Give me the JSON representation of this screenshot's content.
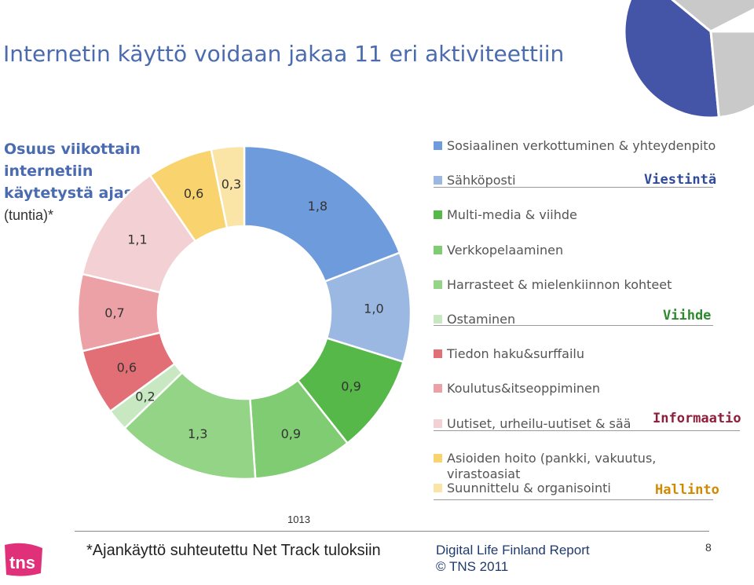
{
  "page": {
    "title": "Internetin käyttö voidaan jakaa 11 eri aktiviteettiin",
    "chart_title": "Osuus viikottain internetiin käytetystä ajasta",
    "chart_unit": "(tuntia)*",
    "code": "1013",
    "footnote": "*Ajankäyttö suhteutettu Net Track tuloksiin",
    "report_line1": "Digital Life  Finland  Report",
    "report_line2": "© TNS 2011",
    "page_number": "8",
    "logo_text": "tns"
  },
  "chart_data": {
    "type": "pie",
    "donut": true,
    "title": "Osuus viikottain internetiin käytetystä ajasta (tuntia)*",
    "categories": [
      "Sosiaalinen verkottuminen & yhteydenpito",
      "Sähköposti",
      "Multi-media & viihde",
      "Verkkopelaaminen",
      "Harrasteet & mielenkiinnon kohteet",
      "Ostaminen",
      "Tiedon haku&surffailu",
      "Koulutus&itseoppiminen",
      "Uutiset, urheilu-uutiset & sää",
      "Asioiden hoito (pankki, vakuutus, virastoasiat",
      "Suunnittelu & organisointi"
    ],
    "values": [
      1.8,
      1.0,
      0.9,
      0.9,
      1.3,
      0.2,
      0.6,
      0.7,
      1.1,
      0.6,
      0.3
    ],
    "value_labels": [
      "1,8",
      "1,0",
      "0,9",
      "0,9",
      "1,3",
      "0,2",
      "0,6",
      "0,7",
      "1,1",
      "0,6",
      "0,3"
    ],
    "colors": [
      "#6e9bdc",
      "#9bb8e3",
      "#57b84a",
      "#7fcc72",
      "#93d486",
      "#c7e8c0",
      "#e26f76",
      "#eca1a6",
      "#f3d0d3",
      "#f8d36e",
      "#fae4a6"
    ],
    "groups": [
      {
        "name": "Viestintä",
        "color": "#2e4a9a",
        "items": [
          0,
          1
        ]
      },
      {
        "name": "Viihde",
        "color": "#2e8a2e",
        "items": [
          2,
          3,
          4,
          5
        ]
      },
      {
        "name": "Informaatio",
        "color": "#8e1f3a",
        "items": [
          6,
          7,
          8
        ]
      },
      {
        "name": "Hallinto",
        "color": "#d18a00",
        "items": [
          9,
          10
        ]
      }
    ]
  },
  "decoration": {
    "corner_pie_colors": [
      "#4455a8",
      "#c9c9c9"
    ]
  }
}
